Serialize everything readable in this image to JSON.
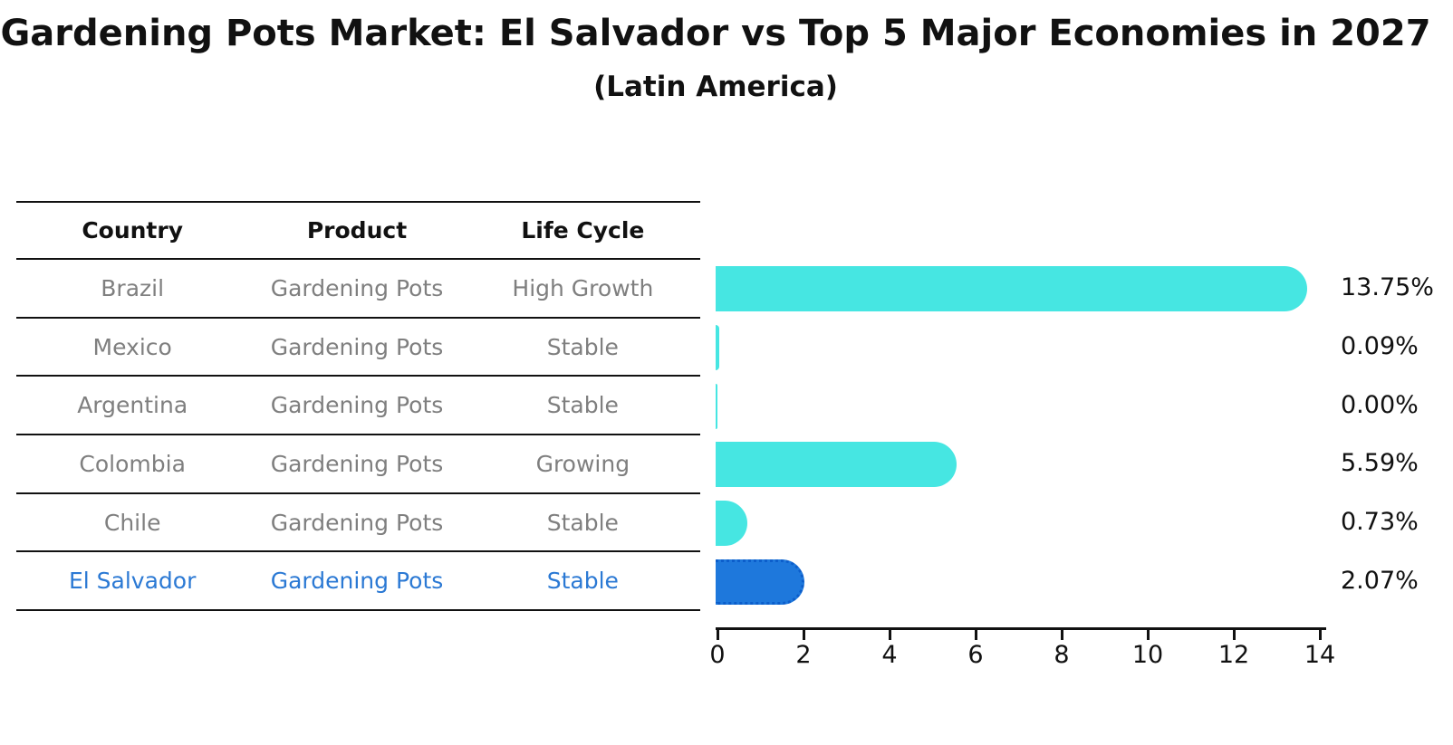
{
  "title": "Gardening Pots Market: El Salvador vs Top 5 Major Economies in 2027",
  "subtitle": "(Latin America)",
  "table": {
    "headers": {
      "country": "Country",
      "product": "Product",
      "life_cycle": "Life Cycle"
    },
    "rows": [
      {
        "country": "Brazil",
        "product": "Gardening Pots",
        "life_cycle": "High Growth",
        "highlight": false
      },
      {
        "country": "Mexico",
        "product": "Gardening Pots",
        "life_cycle": "Stable",
        "highlight": false
      },
      {
        "country": "Argentina",
        "product": "Gardening Pots",
        "life_cycle": "Stable",
        "highlight": false
      },
      {
        "country": "Colombia",
        "product": "Gardening Pots",
        "life_cycle": "Growing",
        "highlight": false
      },
      {
        "country": "Chile",
        "product": "Gardening Pots",
        "life_cycle": "Stable",
        "highlight": false
      },
      {
        "country": "El Salvador",
        "product": "Gardening Pots",
        "life_cycle": "Stable",
        "highlight": true
      }
    ]
  },
  "chart_data": {
    "type": "bar",
    "orientation": "horizontal",
    "categories": [
      "Brazil",
      "Mexico",
      "Argentina",
      "Colombia",
      "Chile",
      "El Salvador"
    ],
    "values": [
      13.75,
      0.09,
      0.0,
      5.59,
      0.73,
      2.07
    ],
    "value_labels": [
      "13.75%",
      "0.09%",
      "0.00%",
      "5.59%",
      "0.73%",
      "2.07%"
    ],
    "xlim": [
      0,
      14
    ],
    "xticks": [
      0,
      2,
      4,
      6,
      8,
      10,
      12,
      14
    ],
    "grid": false,
    "legend": false,
    "bar_color": "#46E6E2",
    "highlight_bar_color": "#1E78DC",
    "highlight_text_color": "#2B79D4",
    "highlight_index": 5
  }
}
